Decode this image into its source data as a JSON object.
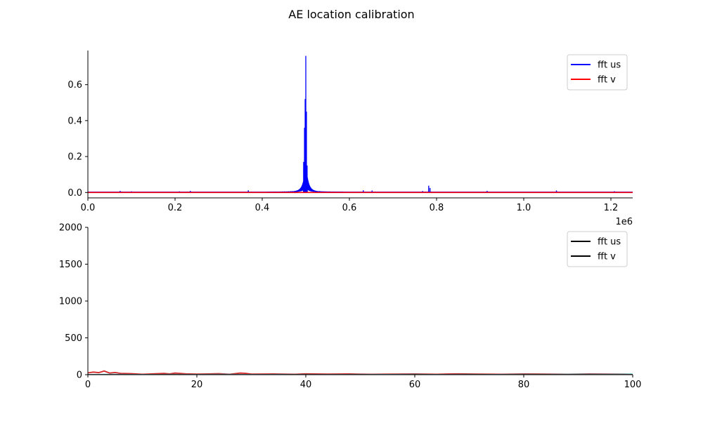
{
  "figure": {
    "title": "AE location calibration"
  },
  "chart_data": [
    {
      "type": "line",
      "title": "",
      "xlabel": "",
      "ylabel": "",
      "xlim": [
        0,
        1250000
      ],
      "ylim": [
        -0.03,
        0.79
      ],
      "x_ticks": [
        0,
        200000,
        400000,
        600000,
        800000,
        1000000,
        1200000
      ],
      "x_tick_labels": [
        "0.0",
        "0.2",
        "0.4",
        "0.6",
        "0.8",
        "1.0",
        "1.2"
      ],
      "x_offset_label": "1e6",
      "y_ticks": [
        0.0,
        0.2,
        0.4,
        0.6
      ],
      "y_tick_labels": [
        "0.0",
        "0.2",
        "0.4",
        "0.6"
      ],
      "grid": false,
      "legend_position": "top-right",
      "series": [
        {
          "name": "fft us",
          "color": "#0000ff",
          "resonance": {
            "center": 500000,
            "peak": 0.76,
            "baseline": 0.002
          },
          "x": [
            74000,
            100000,
            210000,
            235000,
            368000,
            495000,
            497000,
            498500,
            500000,
            501500,
            503000,
            632000,
            652000,
            768000,
            782000,
            785000,
            916000,
            1075000,
            1208000
          ],
          "y": [
            0.009,
            0.006,
            0.006,
            0.009,
            0.012,
            0.17,
            0.36,
            0.52,
            0.76,
            0.45,
            0.15,
            0.012,
            0.011,
            0.008,
            0.038,
            0.025,
            0.009,
            0.011,
            0.007
          ]
        },
        {
          "name": "fft v",
          "color": "#ff0000",
          "x": [
            0,
            1250000
          ],
          "y": [
            0.0,
            0.0
          ]
        }
      ]
    },
    {
      "type": "line",
      "title": "",
      "xlabel": "",
      "ylabel": "",
      "xlim": [
        0,
        100
      ],
      "ylim": [
        0,
        2000
      ],
      "x_ticks": [
        0,
        20,
        40,
        60,
        80,
        100
      ],
      "x_tick_labels": [
        "0",
        "20",
        "40",
        "60",
        "80",
        "100"
      ],
      "y_ticks": [
        0,
        500,
        1000,
        1500,
        2000
      ],
      "y_tick_labels": [
        "0",
        "500",
        "1000",
        "1500",
        "2000"
      ],
      "grid": false,
      "legend_position": "top-right",
      "legend_entries": [
        {
          "name": "fft us",
          "color": "#000000"
        },
        {
          "name": "fft v",
          "color": "#000000"
        }
      ],
      "series": [
        {
          "color": "#d62728",
          "x": [
            0,
            1,
            2,
            3,
            4,
            5,
            6,
            8,
            10,
            12,
            14,
            15,
            16,
            18,
            20,
            22,
            24,
            26,
            28,
            29,
            30,
            34,
            38,
            40,
            44,
            48,
            52,
            56,
            60,
            64,
            68,
            72,
            76,
            80,
            84,
            88,
            92,
            96,
            100
          ],
          "y": [
            25,
            35,
            28,
            50,
            22,
            30,
            18,
            14,
            6,
            12,
            18,
            10,
            22,
            12,
            8,
            10,
            14,
            6,
            22,
            18,
            8,
            10,
            6,
            12,
            8,
            10,
            6,
            8,
            10,
            6,
            12,
            8,
            6,
            10,
            8,
            6,
            10,
            8,
            6
          ]
        },
        {
          "color": "#17becf",
          "x": [
            0,
            5,
            10,
            15,
            20,
            25,
            30,
            35,
            40,
            45,
            50,
            55,
            60,
            65,
            70,
            75,
            80,
            85,
            90,
            95,
            100
          ],
          "y": [
            4,
            6,
            3,
            5,
            4,
            6,
            3,
            5,
            4,
            3,
            5,
            4,
            6,
            3,
            5,
            4,
            6,
            5,
            7,
            6,
            8
          ]
        },
        {
          "color": "#555555",
          "x": [
            0,
            5,
            10,
            15,
            20,
            25,
            30,
            35,
            40,
            45,
            50,
            55,
            60,
            65,
            70,
            75,
            80,
            85,
            90,
            95,
            100
          ],
          "y": [
            3,
            4,
            2,
            5,
            3,
            4,
            2,
            3,
            5,
            3,
            4,
            2,
            4,
            3,
            5,
            3,
            4,
            5,
            4,
            3,
            4
          ]
        }
      ]
    }
  ]
}
